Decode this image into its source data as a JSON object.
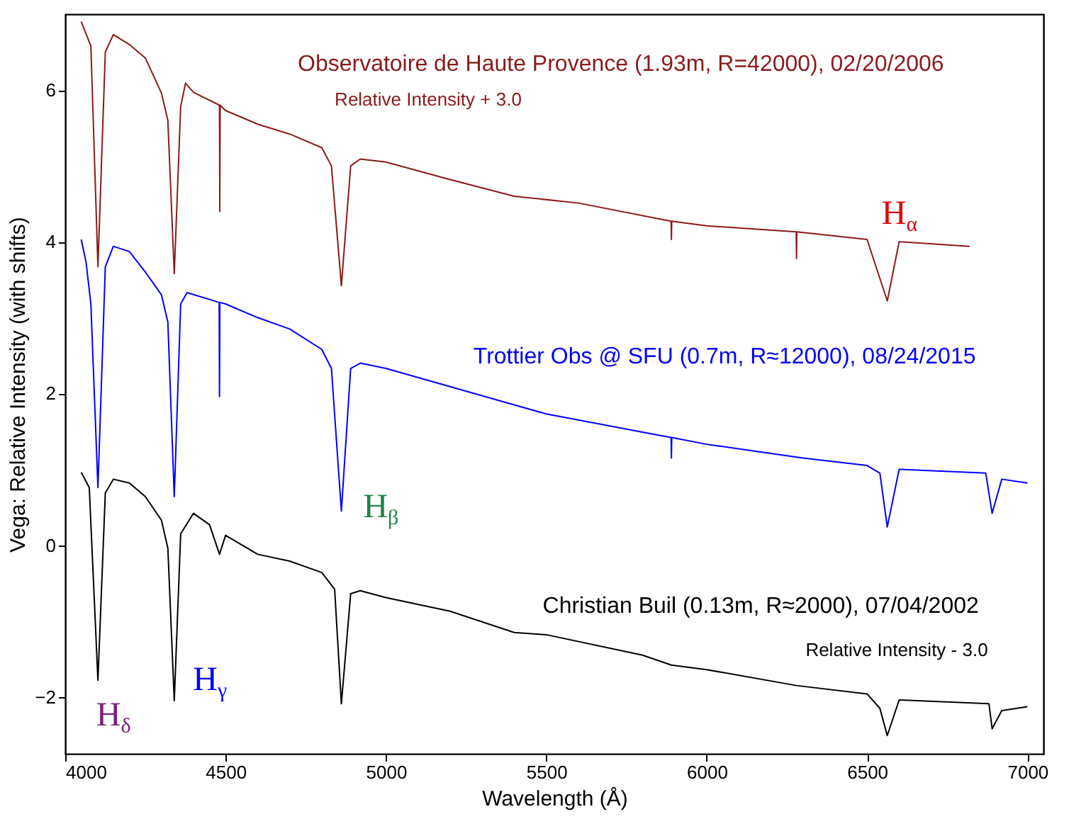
{
  "chart_data": {
    "type": "line",
    "xlabel": "Wavelength (Å)",
    "ylabel": "Vega: Relative Intensity (with shifts)",
    "xlim": [
      4000,
      7050
    ],
    "xticks": [
      4000,
      4500,
      5000,
      5500,
      6000,
      6500,
      7000
    ],
    "ylim": [
      -2.75,
      7
    ],
    "yticks": [
      -2,
      0,
      2,
      4,
      6
    ],
    "grid": false,
    "series": [
      {
        "name": "Observatoire de Haute Provence (1.93m, R=42000), 02/20/2006",
        "color": "#8b1a1a",
        "x": [
          4050,
          4080,
          4102,
          4125,
          4150,
          4200,
          4250,
          4300,
          4320,
          4340,
          4360,
          4375,
          4400,
          4481,
          4482,
          4483,
          4500,
          4600,
          4700,
          4800,
          4830,
          4861,
          4890,
          4920,
          5000,
          5200,
          5400,
          5600,
          5889,
          5890,
          5891,
          6000,
          6279,
          6280,
          6281,
          6500,
          6563,
          6600,
          6820
        ],
        "values": [
          6.9,
          6.58,
          3.67,
          6.5,
          6.73,
          6.6,
          6.42,
          5.96,
          5.6,
          3.58,
          5.78,
          6.09,
          5.97,
          5.8,
          4.4,
          5.8,
          5.73,
          5.55,
          5.42,
          5.24,
          5.0,
          3.42,
          5.0,
          5.09,
          5.05,
          4.82,
          4.6,
          4.51,
          4.27,
          4.03,
          4.27,
          4.21,
          4.13,
          3.78,
          4.13,
          4.03,
          3.22,
          4.0,
          3.94
        ]
      },
      {
        "name": "Trottier Obs @ SFU (0.7m, R≈12000), 08/24/2015",
        "color": "#0000ff",
        "x": [
          4050,
          4065,
          4080,
          4102,
          4125,
          4150,
          4200,
          4250,
          4300,
          4320,
          4340,
          4360,
          4380,
          4480,
          4481,
          4482,
          4500,
          4600,
          4700,
          4800,
          4830,
          4861,
          4890,
          4920,
          5000,
          5200,
          5400,
          5500,
          5800,
          5889,
          5890,
          5891,
          6000,
          6300,
          6500,
          6540,
          6563,
          6600,
          6870,
          6890,
          6920,
          7000
        ],
        "values": [
          4.03,
          3.73,
          3.18,
          0.76,
          3.67,
          3.94,
          3.87,
          3.6,
          3.3,
          2.94,
          0.64,
          3.18,
          3.33,
          3.2,
          1.96,
          3.2,
          3.18,
          3.0,
          2.85,
          2.58,
          2.33,
          0.45,
          2.33,
          2.4,
          2.33,
          2.09,
          1.85,
          1.73,
          1.49,
          1.42,
          1.15,
          1.42,
          1.33,
          1.15,
          1.05,
          0.95,
          0.24,
          1.0,
          0.95,
          0.42,
          0.87,
          0.82
        ]
      },
      {
        "name": "Christian Buil (0.13m, R≈2000), 07/04/2002",
        "color": "#000000",
        "x": [
          4050,
          4075,
          4102,
          4125,
          4150,
          4200,
          4250,
          4300,
          4320,
          4340,
          4360,
          4400,
          4450,
          4481,
          4500,
          4600,
          4700,
          4800,
          4840,
          4861,
          4890,
          4920,
          5000,
          5200,
          5400,
          5500,
          5800,
          5890,
          6000,
          6280,
          6500,
          6540,
          6563,
          6600,
          6880,
          6890,
          6920,
          7000
        ],
        "values": [
          0.96,
          0.76,
          -1.78,
          0.69,
          0.87,
          0.82,
          0.64,
          0.33,
          -0.04,
          -2.05,
          0.15,
          0.42,
          0.27,
          -0.12,
          0.13,
          -0.12,
          -0.21,
          -0.36,
          -0.58,
          -2.09,
          -0.64,
          -0.6,
          -0.69,
          -0.87,
          -1.15,
          -1.18,
          -1.45,
          -1.58,
          -1.64,
          -1.85,
          -1.96,
          -2.15,
          -2.51,
          -2.04,
          -2.09,
          -2.42,
          -2.18,
          -2.13
        ]
      }
    ],
    "annotations": [
      "Relative Intensity + 3.0",
      "Relative Intensity - 3.0",
      "H$_{α}$",
      "H$_{β}$",
      "H$_{γ}$",
      "H$_{δ}$"
    ]
  }
}
